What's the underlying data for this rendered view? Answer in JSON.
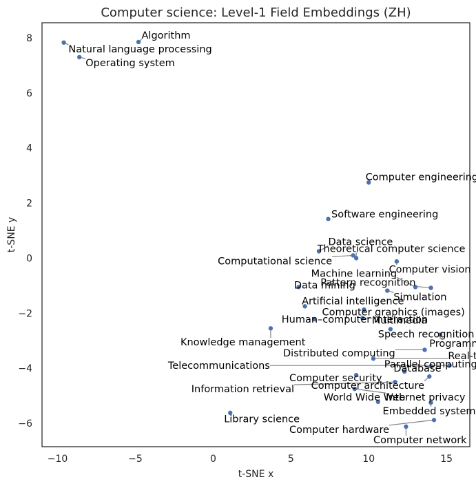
{
  "chart_data": {
    "type": "scatter",
    "title": "Computer science: Level-1 Field Embeddings (ZH)",
    "xlabel": "t-SNE x",
    "ylabel": "t-SNE y",
    "xlim": [
      -11,
      16.5
    ],
    "ylim": [
      -6.85,
      8.55
    ],
    "xticks": [
      -10,
      -5,
      0,
      5,
      10,
      15
    ],
    "yticks": [
      -6,
      -4,
      -2,
      0,
      2,
      4,
      6,
      8
    ],
    "xtick_labels": [
      "−10",
      "−5",
      "0",
      "5",
      "10",
      "15"
    ],
    "ytick_labels": [
      "−6",
      "−4",
      "−2",
      "0",
      "2",
      "4",
      "6",
      "8"
    ],
    "grid": false,
    "color": "#4c72b0",
    "points": [
      {
        "label": "Algorithm",
        "x": -4.8,
        "y": 7.85,
        "lx": -4.6,
        "ly": 8.1
      },
      {
        "label": "Natural language processing",
        "x": -9.6,
        "y": 7.83,
        "lx": -9.3,
        "ly": 7.6
      },
      {
        "label": "Operating system",
        "x": -8.6,
        "y": 7.3,
        "lx": -8.2,
        "ly": 7.1
      },
      {
        "label": "Computer engineering",
        "x": 10.0,
        "y": 2.75,
        "lx": 9.8,
        "ly": 2.95
      },
      {
        "label": "Software engineering",
        "x": 7.4,
        "y": 1.42,
        "lx": 7.6,
        "ly": 1.6
      },
      {
        "label": "Data science",
        "x": 6.8,
        "y": 0.25,
        "lx": 7.4,
        "ly": 0.6
      },
      {
        "label": "Theoretical computer science",
        "x": 9.2,
        "y": 0.0,
        "lx": 6.7,
        "ly": 0.35
      },
      {
        "label": "Computational science",
        "x": 9.0,
        "y": 0.1,
        "lx": 0.3,
        "ly": -0.1
      },
      {
        "label": "Computer vision",
        "x": 11.8,
        "y": -0.12,
        "lx": 11.3,
        "ly": -0.4
      },
      {
        "label": "Machine learning",
        "x": 13.0,
        "y": -1.05,
        "lx": 6.3,
        "ly": -0.55
      },
      {
        "label": "Pattern recognition",
        "x": 14.0,
        "y": -1.08,
        "lx": 6.9,
        "ly": -0.88
      },
      {
        "label": "Data mining",
        "x": 5.5,
        "y": -1.05,
        "lx": 5.2,
        "ly": -0.98
      },
      {
        "label": "Simulation",
        "x": 11.2,
        "y": -1.18,
        "lx": 11.6,
        "ly": -1.4
      },
      {
        "label": "Artificial intelligence",
        "x": 5.9,
        "y": -1.75,
        "lx": 5.7,
        "ly": -1.55
      },
      {
        "label": "Computer graphics (images)",
        "x": 9.7,
        "y": -1.87,
        "lx": 7.0,
        "ly": -1.95
      },
      {
        "label": "Multimedia",
        "x": 9.6,
        "y": -2.18,
        "lx": 10.2,
        "ly": -2.25
      },
      {
        "label": "Human–computer interaction",
        "x": 6.5,
        "y": -2.22,
        "lx": 4.4,
        "ly": -2.22
      },
      {
        "label": "Speech recognition",
        "x": 11.4,
        "y": -2.58,
        "lx": 10.6,
        "ly": -2.75
      },
      {
        "label": "Knowledge management",
        "x": 3.7,
        "y": -2.55,
        "lx": -2.1,
        "ly": -3.05
      },
      {
        "label": "Programming language",
        "x": 14.6,
        "y": -2.78,
        "lx": 13.9,
        "ly": -3.1
      },
      {
        "label": "Distributed computing",
        "x": 13.6,
        "y": -3.33,
        "lx": 4.5,
        "ly": -3.45
      },
      {
        "label": "Real-time computing",
        "x": 10.3,
        "y": -3.65,
        "lx": 15.1,
        "ly": -3.55
      },
      {
        "label": "Telecommunications",
        "x": 15.2,
        "y": -3.9,
        "lx": -2.9,
        "ly": -3.9
      },
      {
        "label": "Parallel computing",
        "x": 14.0,
        "y": -3.92,
        "lx": 11.0,
        "ly": -3.85
      },
      {
        "label": "Database",
        "x": 12.3,
        "y": -4.12,
        "lx": 11.6,
        "ly": -4.0
      },
      {
        "label": "Computer security",
        "x": 9.2,
        "y": -4.25,
        "lx": 4.9,
        "ly": -4.35
      },
      {
        "label": "Computer architecture",
        "x": 13.9,
        "y": -4.3,
        "lx": 6.3,
        "ly": -4.62
      },
      {
        "label": "Information retrieval",
        "x": 11.7,
        "y": -4.5,
        "lx": -1.4,
        "ly": -4.75
      },
      {
        "label": "Internet privacy",
        "x": 9.1,
        "y": -4.75,
        "lx": 11.1,
        "ly": -5.05
      },
      {
        "label": "World Wide Web",
        "x": 10.6,
        "y": -5.22,
        "lx": 7.1,
        "ly": -5.05
      },
      {
        "label": "Embedded system",
        "x": 14.0,
        "y": -5.25,
        "lx": 10.9,
        "ly": -5.55
      },
      {
        "label": "Library science",
        "x": 1.1,
        "y": -5.62,
        "lx": 0.7,
        "ly": -5.83
      },
      {
        "label": "Computer hardware",
        "x": 14.2,
        "y": -5.88,
        "lx": 4.9,
        "ly": -6.22
      },
      {
        "label": "Computer network",
        "x": 12.4,
        "y": -6.12,
        "lx": 10.3,
        "ly": -6.6
      }
    ]
  }
}
